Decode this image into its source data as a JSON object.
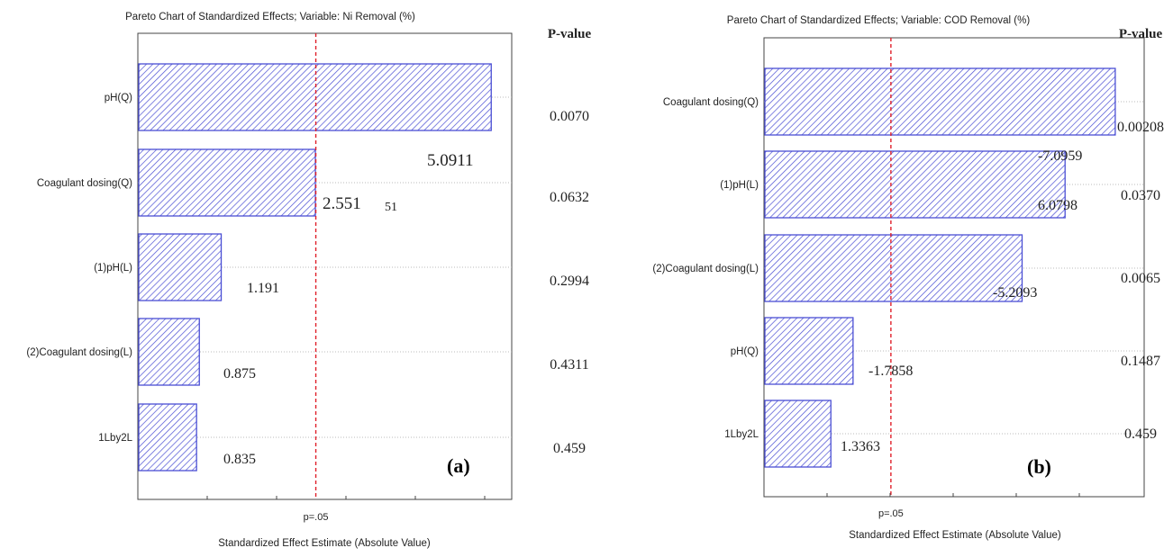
{
  "chart_data": [
    {
      "type": "bar",
      "orientation": "horizontal",
      "title": "Pareto Chart of Standardized Effects; Variable: Ni Removal (%)",
      "xlabel": "Standardized Effect Estimate (Absolute Value)",
      "categories": [
        "pH(Q)",
        "Coagulant dosing(Q)",
        "(1)pH(L)",
        "(2)Coagulant dosing(L)",
        "1Lby2L"
      ],
      "values": [
        5.0911,
        2.551,
        1.191,
        0.875,
        0.835
      ],
      "data_labels": [
        "5.0911",
        "2.551",
        "1.191",
        "0.875",
        "0.835"
      ],
      "extra_labels": [
        "51"
      ],
      "pvalue_header": "P-value",
      "pvalues": [
        "0.0070",
        "0.0632",
        "0.2994",
        "0.4311",
        "0.459"
      ],
      "reference_line": {
        "value": 2.5706,
        "label": "p=.05"
      },
      "panel_label": "(a)",
      "xlim": [
        0,
        5.4
      ],
      "bar_color": "#4a4ed4",
      "ref_color": "#e0202a"
    },
    {
      "type": "bar",
      "orientation": "horizontal",
      "title": "Pareto Chart of Standardized Effects; Variable: COD Removal (%)",
      "xlabel": "Standardized Effect Estimate (Absolute Value)",
      "categories": [
        "Coagulant dosing(Q)",
        "(1)pH(L)",
        "(2)Coagulant dosing(L)",
        "pH(Q)",
        "1Lby2L"
      ],
      "values": [
        7.0959,
        6.0798,
        5.2093,
        1.7858,
        1.3363
      ],
      "data_labels": [
        "-7.0959",
        "6.0798",
        "-5.2093",
        "-1.7858",
        "1.3363"
      ],
      "pvalue_header": "P-value",
      "pvalues": [
        "0.00208",
        "0.0370",
        "0.0065",
        "0.1487",
        "0.459"
      ],
      "reference_line": {
        "value": 2.5706,
        "label": "p=.05"
      },
      "panel_label": "(b)",
      "xlim": [
        0,
        7.7
      ],
      "bar_color": "#4a4ed4",
      "ref_color": "#e0202a"
    }
  ]
}
